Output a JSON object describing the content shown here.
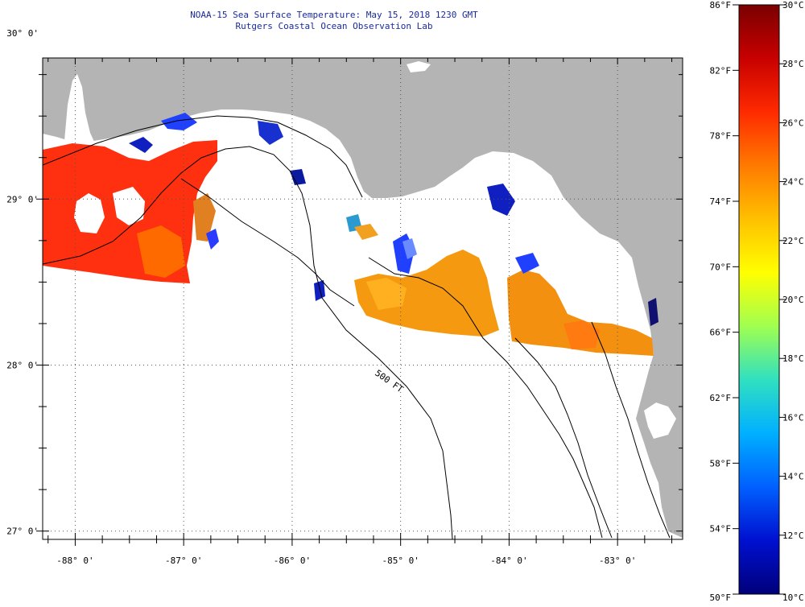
{
  "title": {
    "line1": "NOAA-15 Sea Surface Temperature:  May 15, 2018 1230 GMT",
    "line2": "Rutgers Coastal Ocean Observation Lab"
  },
  "map": {
    "lon_range": [
      -88.3,
      -82.4
    ],
    "lat_range": [
      26.95,
      29.85
    ],
    "lon_ticks": [
      {
        "value": -88,
        "label": "-88° 0'"
      },
      {
        "value": -87,
        "label": "-87° 0'"
      },
      {
        "value": -86,
        "label": "-86° 0'"
      },
      {
        "value": -85,
        "label": "-85° 0'"
      },
      {
        "value": -84,
        "label": "-84° 0'"
      },
      {
        "value": -83,
        "label": "-83° 0'"
      }
    ],
    "lat_ticks": [
      {
        "value": 30,
        "label": "30° 0'"
      },
      {
        "value": 29,
        "label": "29° 0'"
      },
      {
        "value": 28,
        "label": "28° 0'"
      },
      {
        "value": 27,
        "label": "27° 0'"
      }
    ],
    "contour_label": "500 FT",
    "land_color": "#b4b4b4",
    "cloud_color": "#ffffff"
  },
  "colorbar": {
    "f_labels": [
      "86°F",
      "82°F",
      "78°F",
      "74°F",
      "70°F",
      "66°F",
      "62°F",
      "58°F",
      "54°F",
      "50°F"
    ],
    "c_labels": [
      "30°C",
      "28°C",
      "26°C",
      "24°C",
      "22°C",
      "20°C",
      "18°C",
      "16°C",
      "14°C",
      "12°C",
      "10°C"
    ],
    "colors": [
      "#7a0000",
      "#c80000",
      "#ff2a00",
      "#ff7a00",
      "#ffc000",
      "#ffff00",
      "#a0ff50",
      "#30e0c0",
      "#00b0ff",
      "#0060ff",
      "#0010d0",
      "#00007a"
    ]
  }
}
